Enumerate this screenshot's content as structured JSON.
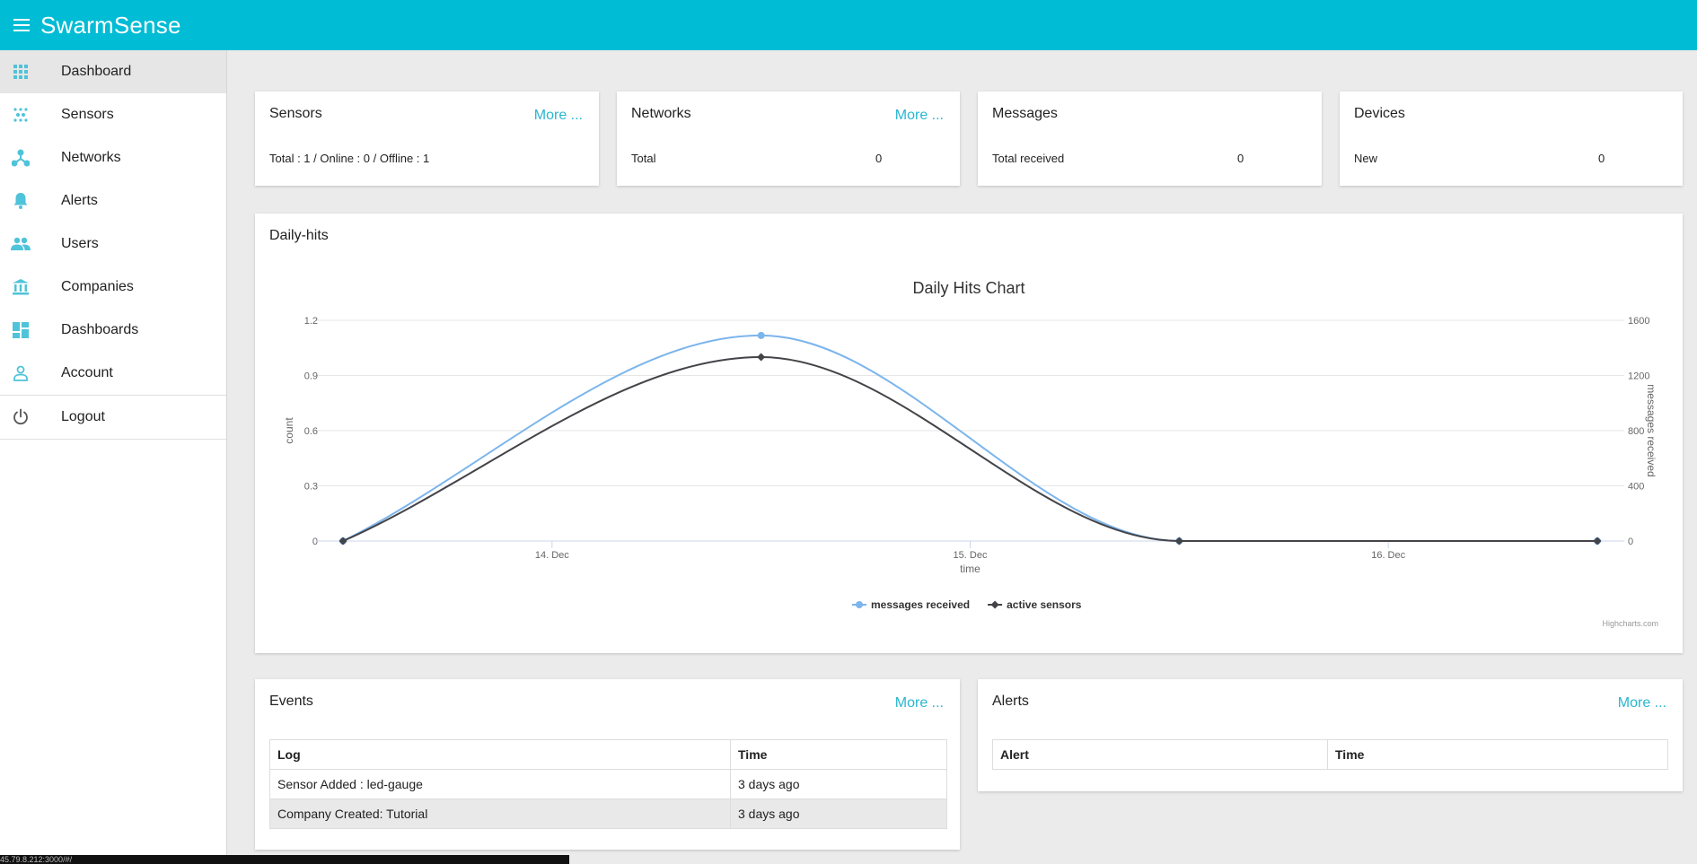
{
  "app": {
    "title": "SwarmSense"
  },
  "sidebar": {
    "items": [
      {
        "label": "Dashboard",
        "icon": "grid-icon"
      },
      {
        "label": "Sensors",
        "icon": "sensors-icon"
      },
      {
        "label": "Networks",
        "icon": "network-icon"
      },
      {
        "label": "Alerts",
        "icon": "bell-icon"
      },
      {
        "label": "Users",
        "icon": "users-icon"
      },
      {
        "label": "Companies",
        "icon": "bank-icon"
      },
      {
        "label": "Dashboards",
        "icon": "dashboards-icon"
      },
      {
        "label": "Account",
        "icon": "account-icon"
      },
      {
        "label": "Logout",
        "icon": "power-icon"
      }
    ],
    "active": "Dashboard"
  },
  "cards": {
    "sensors": {
      "title": "Sensors",
      "more": "More ...",
      "summary": "Total : 1 / Online : 0 / Offline : 1"
    },
    "networks": {
      "title": "Networks",
      "more": "More ...",
      "label": "Total",
      "value": "0"
    },
    "messages": {
      "title": "Messages",
      "label": "Total received",
      "value": "0"
    },
    "devices": {
      "title": "Devices",
      "label": "New",
      "value": "0"
    }
  },
  "daily_hits": {
    "title": "Daily-hits",
    "credit": "Highcharts.com"
  },
  "chart_data": {
    "type": "line",
    "title": "Daily Hits Chart",
    "xlabel": "time",
    "ylabel": "count",
    "ylabel_right": "messages received",
    "x_ticks": [
      "14. Dec",
      "15. Dec",
      "16. Dec"
    ],
    "x": [
      "13. Dec 12:00",
      "14. Dec 12:00",
      "15. Dec 12:00",
      "16. Dec 12:00"
    ],
    "xlim": [
      "13. Dec 12:00",
      "16. Dec 12:00"
    ],
    "yticks_left": [
      "0",
      "0.3",
      "0.6",
      "0.9",
      "1.2"
    ],
    "yticks_right": [
      "0",
      "400",
      "800",
      "1200",
      "1600"
    ],
    "ylim_left": [
      0,
      1.2
    ],
    "ylim_right": [
      0,
      1600
    ],
    "series": [
      {
        "name": "messages received",
        "axis": "right",
        "color": "#7cb5ec",
        "values": [
          0,
          1490,
          0,
          0
        ]
      },
      {
        "name": "active sensors",
        "axis": "left",
        "color": "#434348",
        "values": [
          0,
          1,
          0,
          0
        ]
      }
    ],
    "legend_position": "bottom-center",
    "grid": true
  },
  "events": {
    "title": "Events",
    "more": "More ...",
    "columns": [
      "Log",
      "Time"
    ],
    "rows": [
      [
        "Sensor Added : led-gauge",
        "3 days ago"
      ],
      [
        "Company Created: Tutorial",
        "3 days ago"
      ]
    ]
  },
  "alerts": {
    "title": "Alerts",
    "more": "More ...",
    "columns": [
      "Alert",
      "Time"
    ]
  },
  "status_bar": {
    "url": "45.79.8.212:3000/#/"
  },
  "colors": {
    "accent": "#00bcd4",
    "link": "#29b6d0",
    "icon": "#4fc3d9"
  }
}
